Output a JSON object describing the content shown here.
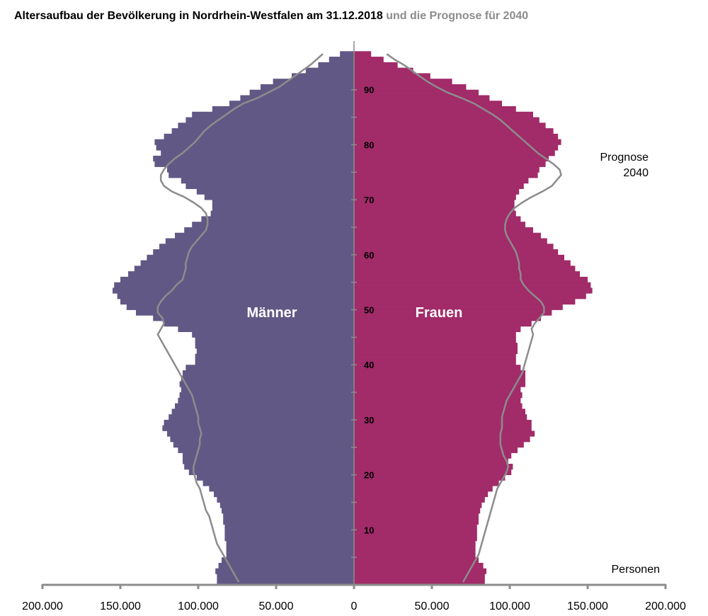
{
  "title": {
    "main": "Altersaufbau der Bevölkerung in Nordrhein-Westfalen am 31.12.2018",
    "sub": "und die Prognose für 2040"
  },
  "colors": {
    "male": "#625885",
    "female": "#a22b69",
    "forecast": "#8c8c8c",
    "axis": "#8c8c8c",
    "text": "#000000",
    "sex_label": "#ffffff"
  },
  "chart_data": {
    "type": "bar",
    "orientation": "horizontal",
    "chart_form": "population-pyramid",
    "title": "Altersaufbau der Bevölkerung in Nordrhein-Westfalen am 31.12.2018 und die Prognose für 2040",
    "age_min": 0,
    "age_max": 96,
    "age_axis_ticks": [
      0,
      5,
      10,
      15,
      20,
      25,
      30,
      35,
      40,
      45,
      50,
      55,
      60,
      65,
      70,
      75,
      80,
      85,
      90
    ],
    "age_axis_labels": [
      {
        "age": 10,
        "label": "10"
      },
      {
        "age": 20,
        "label": "20"
      },
      {
        "age": 30,
        "label": "30"
      },
      {
        "age": 40,
        "label": "40"
      },
      {
        "age": 50,
        "label": "50"
      },
      {
        "age": 60,
        "label": "60"
      },
      {
        "age": 70,
        "label": "70"
      },
      {
        "age": 80,
        "label": "80"
      },
      {
        "age": 90,
        "label": "90"
      }
    ],
    "xlim": [
      -200000,
      200000
    ],
    "x_ticks": [
      {
        "value": -200000,
        "label": "200.000"
      },
      {
        "value": -150000,
        "label": "150.000"
      },
      {
        "value": -100000,
        "label": "100.000"
      },
      {
        "value": -50000,
        "label": "50.000"
      },
      {
        "value": 0,
        "label": "0"
      },
      {
        "value": 50000,
        "label": "50.000"
      },
      {
        "value": 100000,
        "label": "100.000"
      },
      {
        "value": 150000,
        "label": "150.000"
      },
      {
        "value": 200000,
        "label": "200.000"
      }
    ],
    "xlabel": "Personen",
    "series_labels": {
      "male": "Männer",
      "female": "Frauen"
    },
    "forecast_label": [
      "Prognose",
      "2040"
    ],
    "ages": [
      0,
      1,
      2,
      3,
      4,
      5,
      6,
      7,
      8,
      9,
      10,
      11,
      12,
      13,
      14,
      15,
      16,
      17,
      18,
      19,
      20,
      21,
      22,
      23,
      24,
      25,
      26,
      27,
      28,
      29,
      30,
      31,
      32,
      33,
      34,
      35,
      36,
      37,
      38,
      39,
      40,
      41,
      42,
      43,
      44,
      45,
      46,
      47,
      48,
      49,
      50,
      51,
      52,
      53,
      54,
      55,
      56,
      57,
      58,
      59,
      60,
      61,
      62,
      63,
      64,
      65,
      66,
      67,
      68,
      69,
      70,
      71,
      72,
      73,
      74,
      75,
      76,
      77,
      78,
      79,
      80,
      81,
      82,
      83,
      84,
      85,
      86,
      87,
      88,
      89,
      90,
      91,
      92,
      93,
      94,
      95,
      96
    ],
    "series": [
      {
        "name": "Männer",
        "side": "left",
        "values": [
          88000,
          88000,
          89000,
          87000,
          85000,
          82000,
          82000,
          82000,
          83000,
          83000,
          83000,
          84000,
          84000,
          85000,
          86000,
          88000,
          90000,
          93000,
          97000,
          101000,
          106000,
          109000,
          110000,
          110000,
          113000,
          116000,
          118000,
          120000,
          123000,
          122000,
          119000,
          117000,
          115000,
          113000,
          112000,
          111000,
          112000,
          111000,
          110000,
          108000,
          102000,
          102000,
          101000,
          102000,
          102000,
          104000,
          113000,
          122000,
          129000,
          140000,
          146000,
          150000,
          152000,
          155000,
          154000,
          150000,
          145000,
          141000,
          137000,
          133000,
          129000,
          125000,
          121000,
          115000,
          109000,
          104000,
          98000,
          92000,
          91000,
          91000,
          96000,
          101000,
          108000,
          111000,
          119000,
          120000,
          128000,
          129000,
          124000,
          127000,
          128000,
          122000,
          117000,
          113000,
          108000,
          104000,
          91000,
          80000,
          73000,
          67000,
          60000,
          52000,
          40000,
          31000,
          23000,
          16000,
          9000
        ]
      },
      {
        "name": "Frauen",
        "side": "right",
        "values": [
          84000,
          84000,
          85000,
          83000,
          80000,
          78000,
          78000,
          78000,
          79000,
          79000,
          79000,
          80000,
          80000,
          81000,
          82000,
          84000,
          86000,
          89000,
          93000,
          97000,
          101000,
          102000,
          99000,
          101000,
          105000,
          109000,
          113000,
          116000,
          114000,
          114000,
          111000,
          110000,
          108000,
          107000,
          108000,
          107000,
          110000,
          110000,
          110000,
          107000,
          104000,
          104000,
          105000,
          105000,
          104000,
          104000,
          107000,
          114000,
          120000,
          127000,
          134000,
          142000,
          149000,
          153000,
          152000,
          150000,
          145000,
          142000,
          139000,
          135000,
          131000,
          128000,
          124000,
          120000,
          115000,
          110000,
          107000,
          104000,
          103000,
          103000,
          104000,
          106000,
          109000,
          112000,
          118000,
          119000,
          123000,
          125000,
          129000,
          131000,
          133000,
          131000,
          128000,
          123000,
          119000,
          115000,
          104000,
          95000,
          87000,
          80000,
          72000,
          63000,
          49000,
          38000,
          28000,
          19000,
          11000
        ]
      },
      {
        "name": "Prognose 2040 Männer",
        "side": "left",
        "line": true,
        "values": [
          74000,
          76000,
          78000,
          80000,
          82000,
          84000,
          86000,
          88000,
          89000,
          90000,
          91000,
          92000,
          93000,
          95000,
          96000,
          97000,
          98000,
          99000,
          101000,
          102000,
          103000,
          103000,
          102000,
          101000,
          100000,
          99000,
          99000,
          98000,
          99000,
          100000,
          100000,
          101000,
          102000,
          103000,
          104000,
          106000,
          108000,
          110000,
          112000,
          114000,
          116000,
          118000,
          120000,
          122000,
          124000,
          126000,
          124000,
          122000,
          123000,
          126000,
          126000,
          124000,
          121000,
          117000,
          114000,
          110000,
          109000,
          108000,
          108000,
          107000,
          106000,
          104000,
          101000,
          98000,
          95000,
          94000,
          94000,
          95000,
          98000,
          103000,
          109000,
          117000,
          122000,
          124000,
          124000,
          122000,
          119000,
          115000,
          110000,
          106000,
          102000,
          99000,
          96000,
          92000,
          87000,
          82000,
          77000,
          71000,
          62000,
          55000,
          48000,
          43000,
          38000,
          33000,
          28000,
          24000,
          20000
        ]
      },
      {
        "name": "Prognose 2040 Frauen",
        "side": "right",
        "line": true,
        "values": [
          70000,
          72000,
          74000,
          76000,
          78000,
          80000,
          81000,
          82000,
          83000,
          84000,
          85000,
          86000,
          87000,
          88000,
          89000,
          90000,
          91000,
          92000,
          94000,
          96000,
          98000,
          99000,
          98000,
          96000,
          95000,
          94000,
          94000,
          94000,
          95000,
          95000,
          95000,
          96000,
          97000,
          98000,
          100000,
          102000,
          104000,
          106000,
          108000,
          109000,
          110000,
          111000,
          112000,
          113000,
          114000,
          115000,
          114000,
          116000,
          119000,
          122000,
          122000,
          120000,
          116000,
          112000,
          109000,
          107000,
          107000,
          106000,
          106000,
          105000,
          104000,
          102000,
          100000,
          98000,
          97000,
          97000,
          98000,
          100000,
          103000,
          108000,
          114000,
          121000,
          127000,
          130000,
          133000,
          132000,
          128000,
          123000,
          118000,
          114000,
          110000,
          106000,
          102000,
          98000,
          94000,
          89000,
          83000,
          77000,
          69000,
          60000,
          53000,
          47000,
          42000,
          37000,
          32000,
          26000,
          21000
        ]
      }
    ]
  }
}
